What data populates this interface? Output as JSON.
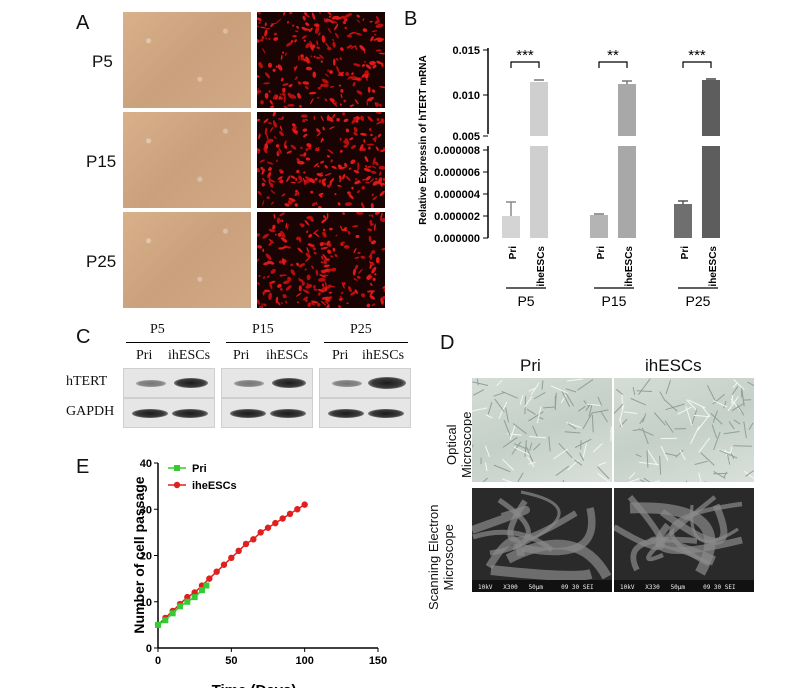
{
  "panels": {
    "a": "A",
    "b": "B",
    "c": "C",
    "d": "D",
    "e": "E"
  },
  "panel_a": {
    "rows": [
      "P5",
      "P15",
      "P25"
    ]
  },
  "panel_b": {
    "ylabel": "Relative Expressin of hTERT mRNA",
    "upper_ticks": [
      "0.015",
      "0.010",
      "0.005"
    ],
    "lower_ticks": [
      "0.000008",
      "0.000006",
      "0.000004",
      "0.000002",
      "0.000000"
    ],
    "sig": [
      "***",
      "**",
      "***"
    ],
    "groups": [
      "P5",
      "P15",
      "P25"
    ],
    "bar_labels": [
      "Pri",
      "iheESCs",
      "Pri",
      "iheESCs",
      "Pri",
      "iheESCs"
    ]
  },
  "panel_c": {
    "groups": [
      "P5",
      "P15",
      "P25"
    ],
    "lane_labels": [
      "Pri",
      "ihESCs",
      "Pri",
      "ihESCs",
      "Pri",
      "ihESCs"
    ],
    "row_labels": [
      "hTERT",
      "GAPDH"
    ]
  },
  "panel_d": {
    "col_labels": [
      "Pri",
      "ihESCs"
    ],
    "row_labels": [
      "Optical\nMicroscope",
      "Scanning Electron\nMicroscope"
    ],
    "sem_caption_1": "10kV   X300   50μm     09 30 SEI",
    "sem_caption_2": "10kV   X330   50μm     09 30 SEI"
  },
  "chart_data": [
    {
      "type": "bar",
      "title": "",
      "ylabel": "Relative Expressin of hTERT mRNA",
      "axis_break": true,
      "categories": [
        "P5",
        "P15",
        "P25"
      ],
      "series": [
        {
          "name": "Pri",
          "values": [
            2e-06,
            2.1e-06,
            3.1e-06
          ],
          "errors": [
            1.3e-06,
            1e-07,
            3e-07
          ]
        },
        {
          "name": "iheESCs",
          "values": [
            0.0113,
            0.0109,
            0.0116
          ],
          "errors": [
            0.0002,
            0.0006,
            0.0002
          ]
        }
      ],
      "significance": [
        "***",
        "**",
        "***"
      ],
      "colors": {
        "Pri_P5": "#d4d4d4",
        "iheESCs_P5": "#cfcfcf",
        "Pri_P15": "#b4b4b4",
        "iheESCs_P15": "#a8a8a8",
        "Pri_P25": "#6f6f6f",
        "iheESCs_P25": "#5d5d5d"
      }
    },
    {
      "type": "line",
      "title": "",
      "xlabel": "Time (Days)",
      "ylabel": "Number of cell passage",
      "xlim": [
        0,
        150
      ],
      "ylim": [
        0,
        40
      ],
      "xticks": [
        "0",
        "50",
        "100",
        "150"
      ],
      "yticks": [
        "0",
        "10",
        "20",
        "30",
        "40"
      ],
      "legend_position": "top-left",
      "series": [
        {
          "name": "Pri",
          "color": "#33cc33",
          "marker": "square",
          "x": [
            0,
            5,
            10,
            15,
            20,
            25,
            30,
            33
          ],
          "y": [
            5,
            6,
            7.5,
            9,
            10,
            11,
            12.5,
            13.5
          ]
        },
        {
          "name": "iheESCs",
          "color": "#e02020",
          "marker": "circle",
          "x": [
            0,
            5,
            10,
            15,
            20,
            25,
            30,
            35,
            40,
            45,
            50,
            55,
            60,
            65,
            70,
            75,
            80,
            85,
            90,
            95,
            100
          ],
          "y": [
            5,
            6.5,
            8,
            9.5,
            11,
            12,
            13.5,
            15,
            16.5,
            18,
            19.5,
            21,
            22.5,
            23.5,
            25,
            26,
            27,
            28,
            29,
            30,
            31
          ]
        }
      ]
    }
  ]
}
